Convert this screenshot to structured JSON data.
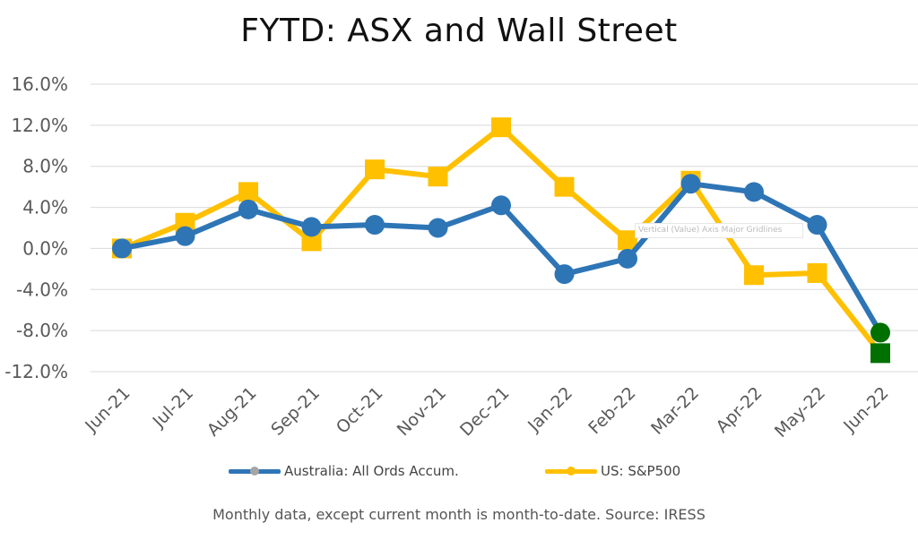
{
  "title": "FYTD: ASX and Wall Street",
  "footnote": "Monthly data, except current month is month-to-date.  Source: IRESS",
  "tooltip": "Vertical (Value) Axis Major Gridlines",
  "colors": {
    "australia": "#2E75B6",
    "us": "#FFC000",
    "australia_latest": "#007000",
    "us_latest": "#007000",
    "grid": "#d9d9d9",
    "legend_dot": "#A5A5A5"
  },
  "chart_data": {
    "type": "line",
    "title": "FYTD: ASX and Wall Street",
    "categories": [
      "Jun-21",
      "Jul-21",
      "Aug-21",
      "Sep-21",
      "Oct-21",
      "Nov-21",
      "Dec-21",
      "Jan-22",
      "Feb-22",
      "Mar-22",
      "Apr-22",
      "May-22",
      "Jun-22"
    ],
    "series": [
      {
        "name": "Australia: All Ords Accum.",
        "marker": "circle",
        "values": [
          0.0,
          1.2,
          3.8,
          2.1,
          2.3,
          2.0,
          4.2,
          -2.5,
          -1.0,
          6.3,
          5.5,
          2.3,
          -8.2
        ]
      },
      {
        "name": "US: S&P500",
        "marker": "square",
        "values": [
          0.0,
          2.5,
          5.5,
          0.7,
          7.7,
          7.0,
          11.8,
          6.0,
          0.8,
          6.6,
          -2.6,
          -2.4,
          -10.2
        ]
      }
    ],
    "yticks": [
      16.0,
      12.0,
      8.0,
      4.0,
      0.0,
      -4.0,
      -8.0,
      -12.0
    ],
    "ytick_labels": [
      "16.0%",
      "12.0%",
      "8.0%",
      "4.0%",
      "0.0%",
      "-4.0%",
      "-8.0%",
      "-12.0%"
    ],
    "ylim": [
      -12,
      16
    ],
    "grid": true,
    "legend": "bottom"
  }
}
